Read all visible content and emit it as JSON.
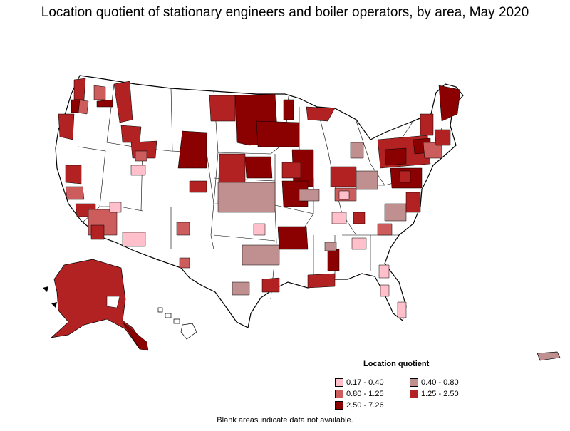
{
  "title": "Location quotient of stationary engineers and boiler operators, by area, May 2020",
  "legend": {
    "title": "Location quotient",
    "items": [
      {
        "label": "0.17 - 0.40",
        "color": "#ffc0cb"
      },
      {
        "label": "0.40 - 0.80",
        "color": "#c09090"
      },
      {
        "label": "0.80 - 1.25",
        "color": "#cd5c5c"
      },
      {
        "label": "1.25 - 2.50",
        "color": "#b22222"
      },
      {
        "label": "2.50 - 7.26",
        "color": "#8b0000"
      }
    ]
  },
  "note": "Blank areas indicate data not available."
}
